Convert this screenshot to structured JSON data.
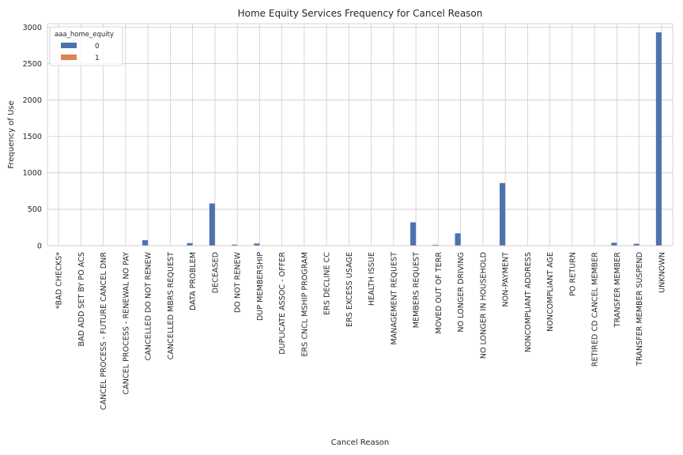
{
  "chart_data": {
    "type": "bar",
    "title": "Home Equity Services Frequency for Cancel Reason",
    "xlabel": "Cancel Reason",
    "ylabel": "Frequency of Use",
    "ylim": [
      0,
      3000
    ],
    "yticks": [
      0,
      500,
      1000,
      1500,
      2000,
      2500,
      3000
    ],
    "grid": true,
    "legend": {
      "title": "aaa_home_equity",
      "placement": "top-left"
    },
    "categories": [
      "*BAD CHECKS*",
      "BAD ADD SET BY PO ACS",
      "CANCEL PROCESS - FUTURE CANCEL DNR",
      "CANCEL PROCESS - RENEWAL NO PAY",
      "CANCELLED DO NOT RENEW",
      "CANCELLED MBRS REQUEST",
      "DATA PROBLEM",
      "DECEASED",
      "DO NOT RENEW",
      "DUP MEMBERSHIP",
      "DUPLICATE ASSOC - OFFER",
      "ERS CNCL MSHIP PROGRAM",
      "ERS DECLINE CC",
      "ERS EXCESS USAGE",
      "HEALTH ISSUE",
      "MANAGEMENT REQUEST",
      "MEMBERS REQUEST",
      "MOVED OUT OF TERR",
      "NO LONGER DRIVING",
      "NO LONGER IN HOUSEHOLD",
      "NON-PAYMENT",
      "NONCOMPLIANT ADDRESS",
      "NONCOMPLIANT AGE",
      "PO RETURN",
      "RETIRED CD CANCEL MEMBER",
      "TRANSFER MEMBER",
      "TRANSFER MEMBER SUSPEND",
      "UNKNOWN"
    ],
    "series": [
      {
        "name": "0",
        "color": "#4c72b0",
        "values": [
          1,
          1,
          2,
          2,
          75,
          2,
          35,
          580,
          15,
          30,
          1,
          2,
          1,
          2,
          1,
          1,
          320,
          12,
          170,
          2,
          860,
          1,
          2,
          2,
          1,
          40,
          25,
          2930
        ]
      },
      {
        "name": "1",
        "color": "#dd8452",
        "values": [
          0,
          0,
          0,
          0,
          0,
          0,
          0,
          0,
          0,
          0,
          0,
          0,
          0,
          0,
          0,
          0,
          0,
          0,
          0,
          0,
          0,
          0,
          0,
          0,
          0,
          0,
          0,
          0
        ]
      }
    ]
  }
}
